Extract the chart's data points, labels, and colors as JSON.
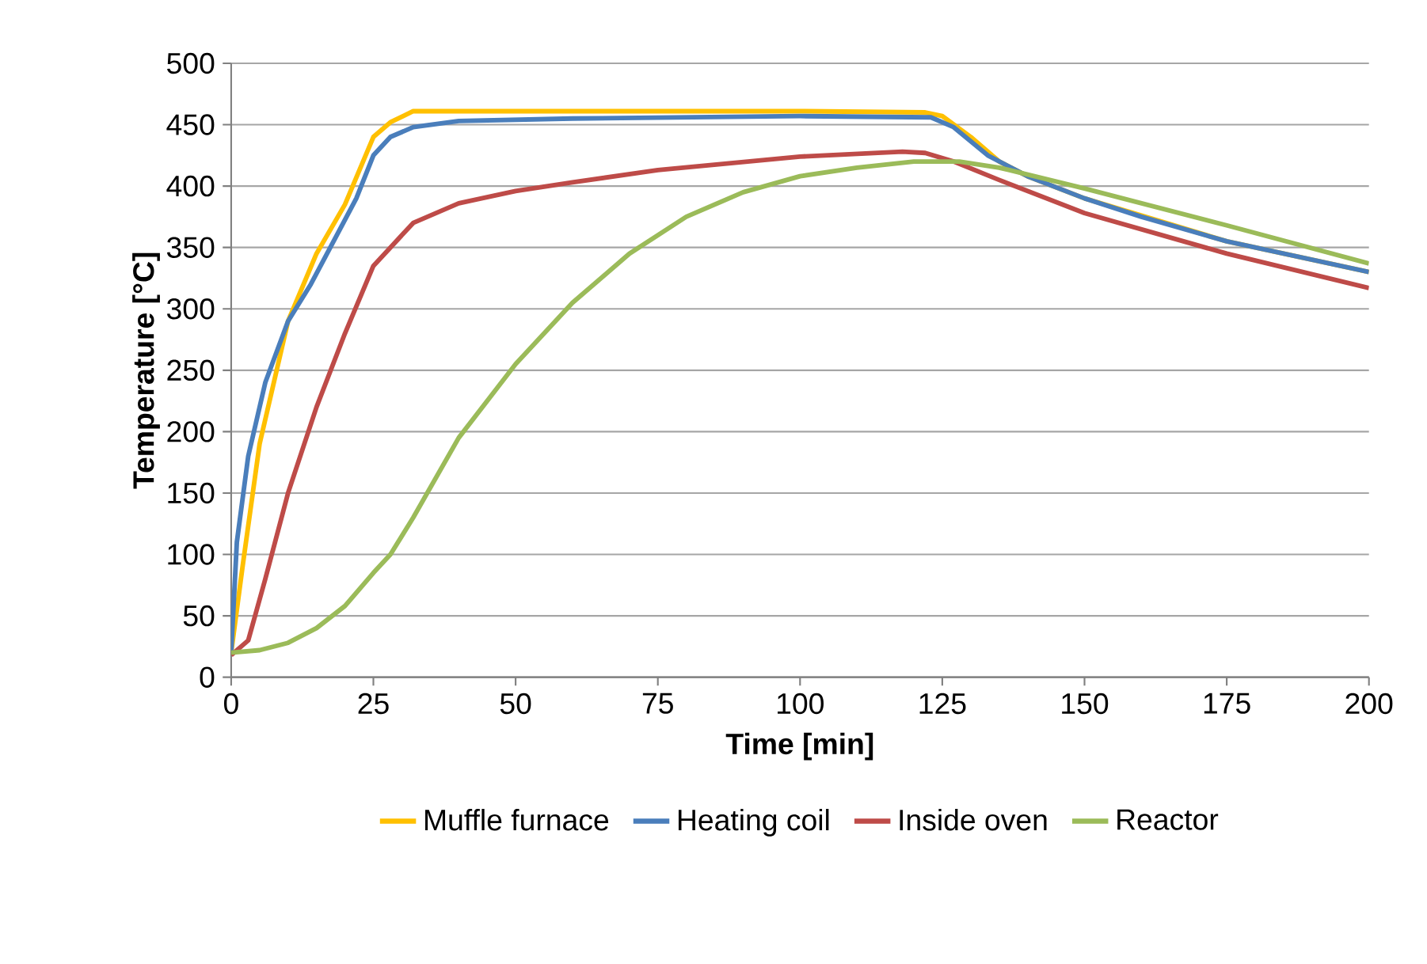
{
  "chart_data": {
    "type": "line",
    "xlabel": "Time [min]",
    "ylabel": "Temperature [°C]",
    "xlim": [
      0,
      200
    ],
    "xticks": [
      0,
      25,
      50,
      75,
      100,
      125,
      150,
      175,
      200
    ],
    "ylim": [
      0,
      500
    ],
    "yticks": [
      0,
      50,
      100,
      150,
      200,
      250,
      300,
      350,
      400,
      450,
      500
    ],
    "grid": "y",
    "legend": "bottom",
    "marker": "none",
    "line_style": "solid",
    "series": [
      {
        "name": "Muffle furnace",
        "color": "#ffc000",
        "x": [
          0,
          2,
          5,
          10,
          15,
          20,
          25,
          28,
          32,
          60,
          100,
          122,
          125,
          130,
          135,
          140,
          150,
          175,
          200
        ],
        "values": [
          20,
          90,
          190,
          290,
          345,
          385,
          440,
          452,
          461,
          461,
          461,
          460,
          457,
          440,
          420,
          408,
          390,
          355,
          330
        ]
      },
      {
        "name": "Heating coil",
        "color": "#4a7ebb",
        "x": [
          0,
          1,
          3,
          6,
          10,
          14,
          18,
          22,
          25,
          28,
          32,
          40,
          60,
          100,
          123,
          127,
          133,
          140,
          150,
          160,
          175,
          200
        ],
        "values": [
          20,
          110,
          180,
          240,
          290,
          320,
          355,
          390,
          425,
          440,
          448,
          453,
          455,
          457,
          456,
          448,
          425,
          408,
          390,
          375,
          355,
          330
        ]
      },
      {
        "name": "Inside oven",
        "color": "#be4b48",
        "x": [
          0,
          3,
          6,
          10,
          15,
          20,
          25,
          28,
          32,
          40,
          50,
          60,
          75,
          100,
          118,
          122,
          127,
          135,
          150,
          175,
          200
        ],
        "values": [
          18,
          30,
          80,
          150,
          220,
          280,
          335,
          350,
          370,
          386,
          396,
          403,
          413,
          424,
          428,
          427,
          420,
          405,
          378,
          345,
          317
        ]
      },
      {
        "name": "Reactor",
        "color": "#9bbb59",
        "x": [
          0,
          5,
          10,
          15,
          20,
          25,
          28,
          32,
          40,
          50,
          60,
          70,
          80,
          90,
          100,
          110,
          120,
          128,
          135,
          150,
          175,
          200
        ],
        "values": [
          20,
          22,
          28,
          40,
          58,
          85,
          100,
          130,
          195,
          255,
          305,
          345,
          375,
          395,
          408,
          415,
          420,
          420,
          415,
          398,
          368,
          337
        ]
      }
    ]
  }
}
